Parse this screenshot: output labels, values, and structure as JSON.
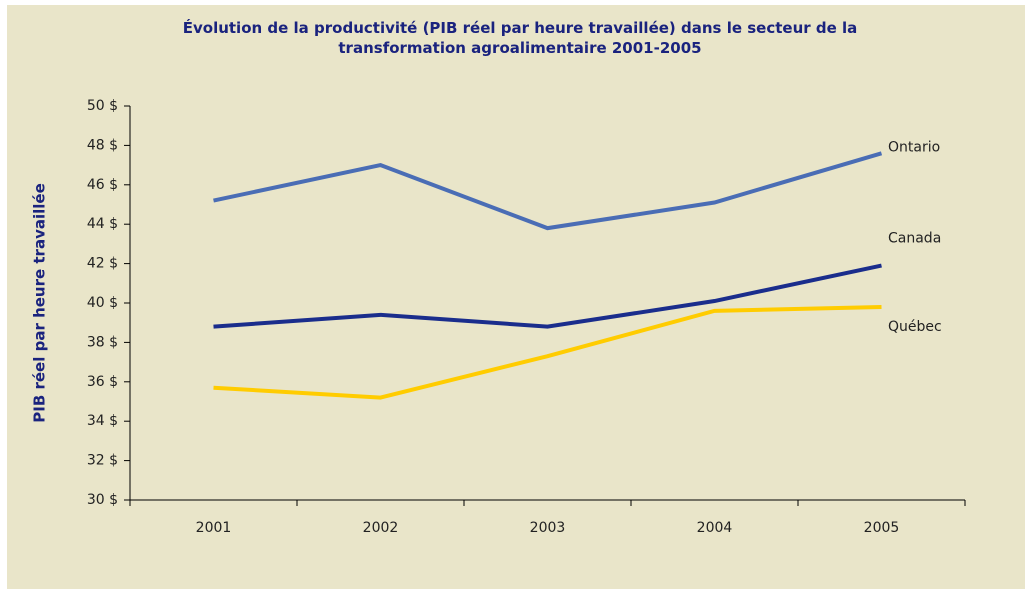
{
  "chart_data": {
    "type": "line",
    "title": "Évolution de la productivité (PIB réel par heure travaillée) dans le secteur de la transformation agroalimentaire 2001-2005",
    "y_label": "PIB réel par heure travaillée",
    "categories": [
      "2001",
      "2002",
      "2003",
      "2004",
      "2005"
    ],
    "series": [
      {
        "name": "Ontario",
        "color": "#4a6db5",
        "values": [
          45.2,
          47.0,
          43.8,
          45.1,
          47.6
        ]
      },
      {
        "name": "Canada",
        "color": "#1a2d8c",
        "values": [
          38.8,
          39.4,
          38.8,
          40.1,
          41.9
        ]
      },
      {
        "name": "Québec",
        "color": "#ffcc00",
        "values": [
          35.7,
          35.2,
          37.3,
          39.6,
          39.8
        ]
      }
    ],
    "ylim": [
      30,
      50
    ],
    "yticks": [
      {
        "value": 30,
        "label": "30 $"
      },
      {
        "value": 32,
        "label": "32 $"
      },
      {
        "value": 34,
        "label": "34 $"
      },
      {
        "value": 36,
        "label": "36 $"
      },
      {
        "value": 38,
        "label": "38 $"
      },
      {
        "value": 40,
        "label": "40 $"
      },
      {
        "value": 42,
        "label": "42 $"
      },
      {
        "value": 44,
        "label": "44 $"
      },
      {
        "value": 46,
        "label": "46 $"
      },
      {
        "value": 48,
        "label": "48 $"
      },
      {
        "value": 50,
        "label": "50 $"
      }
    ],
    "grid": false
  }
}
